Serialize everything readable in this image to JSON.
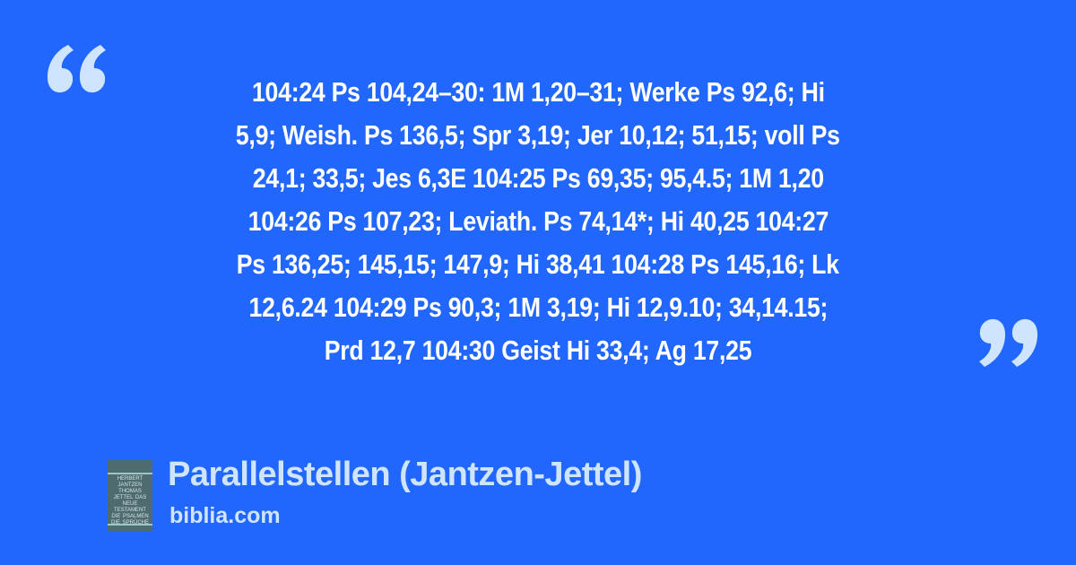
{
  "quote": {
    "lines": [
      "104:24 Ps 104,24–30: 1M 1,20–31; Werke Ps 92,6; Hi",
      "5,9; Weish. Ps 136,5; Spr 3,19; Jer 10,12; 51,15; voll Ps",
      "24,1; 33,5; Jes 6,3E 104:25 Ps 69,35; 95,4.5; 1M 1,20",
      "104:26 Ps 107,23; Leviath. Ps 74,14*; Hi 40,25 104:27",
      "Ps 136,25; 145,15; 147,9; Hi 38,41 104:28 Ps 145,16; Lk",
      "12,6.24 104:29 Ps 90,3; 1M 3,19; Hi 12,9.10; 34,14.15;",
      "Prd 12,7 104:30 Geist Hi 33,4; Ag 17,25"
    ],
    "open_icon": "open-quote-icon",
    "close_icon": "close-quote-icon"
  },
  "footer": {
    "cover_text": "HERBERT JANTZEN THOMAS JETTEL DAS NEUE TESTAMENT DIE PSALMEN DIE SPRÜCHE",
    "title": "Parallelstellen (Jantzen-Jettel)",
    "site": "biblia.com"
  },
  "colors": {
    "background": "#2167fd",
    "accent": "#cfe4ff",
    "text": "#ffffff"
  }
}
